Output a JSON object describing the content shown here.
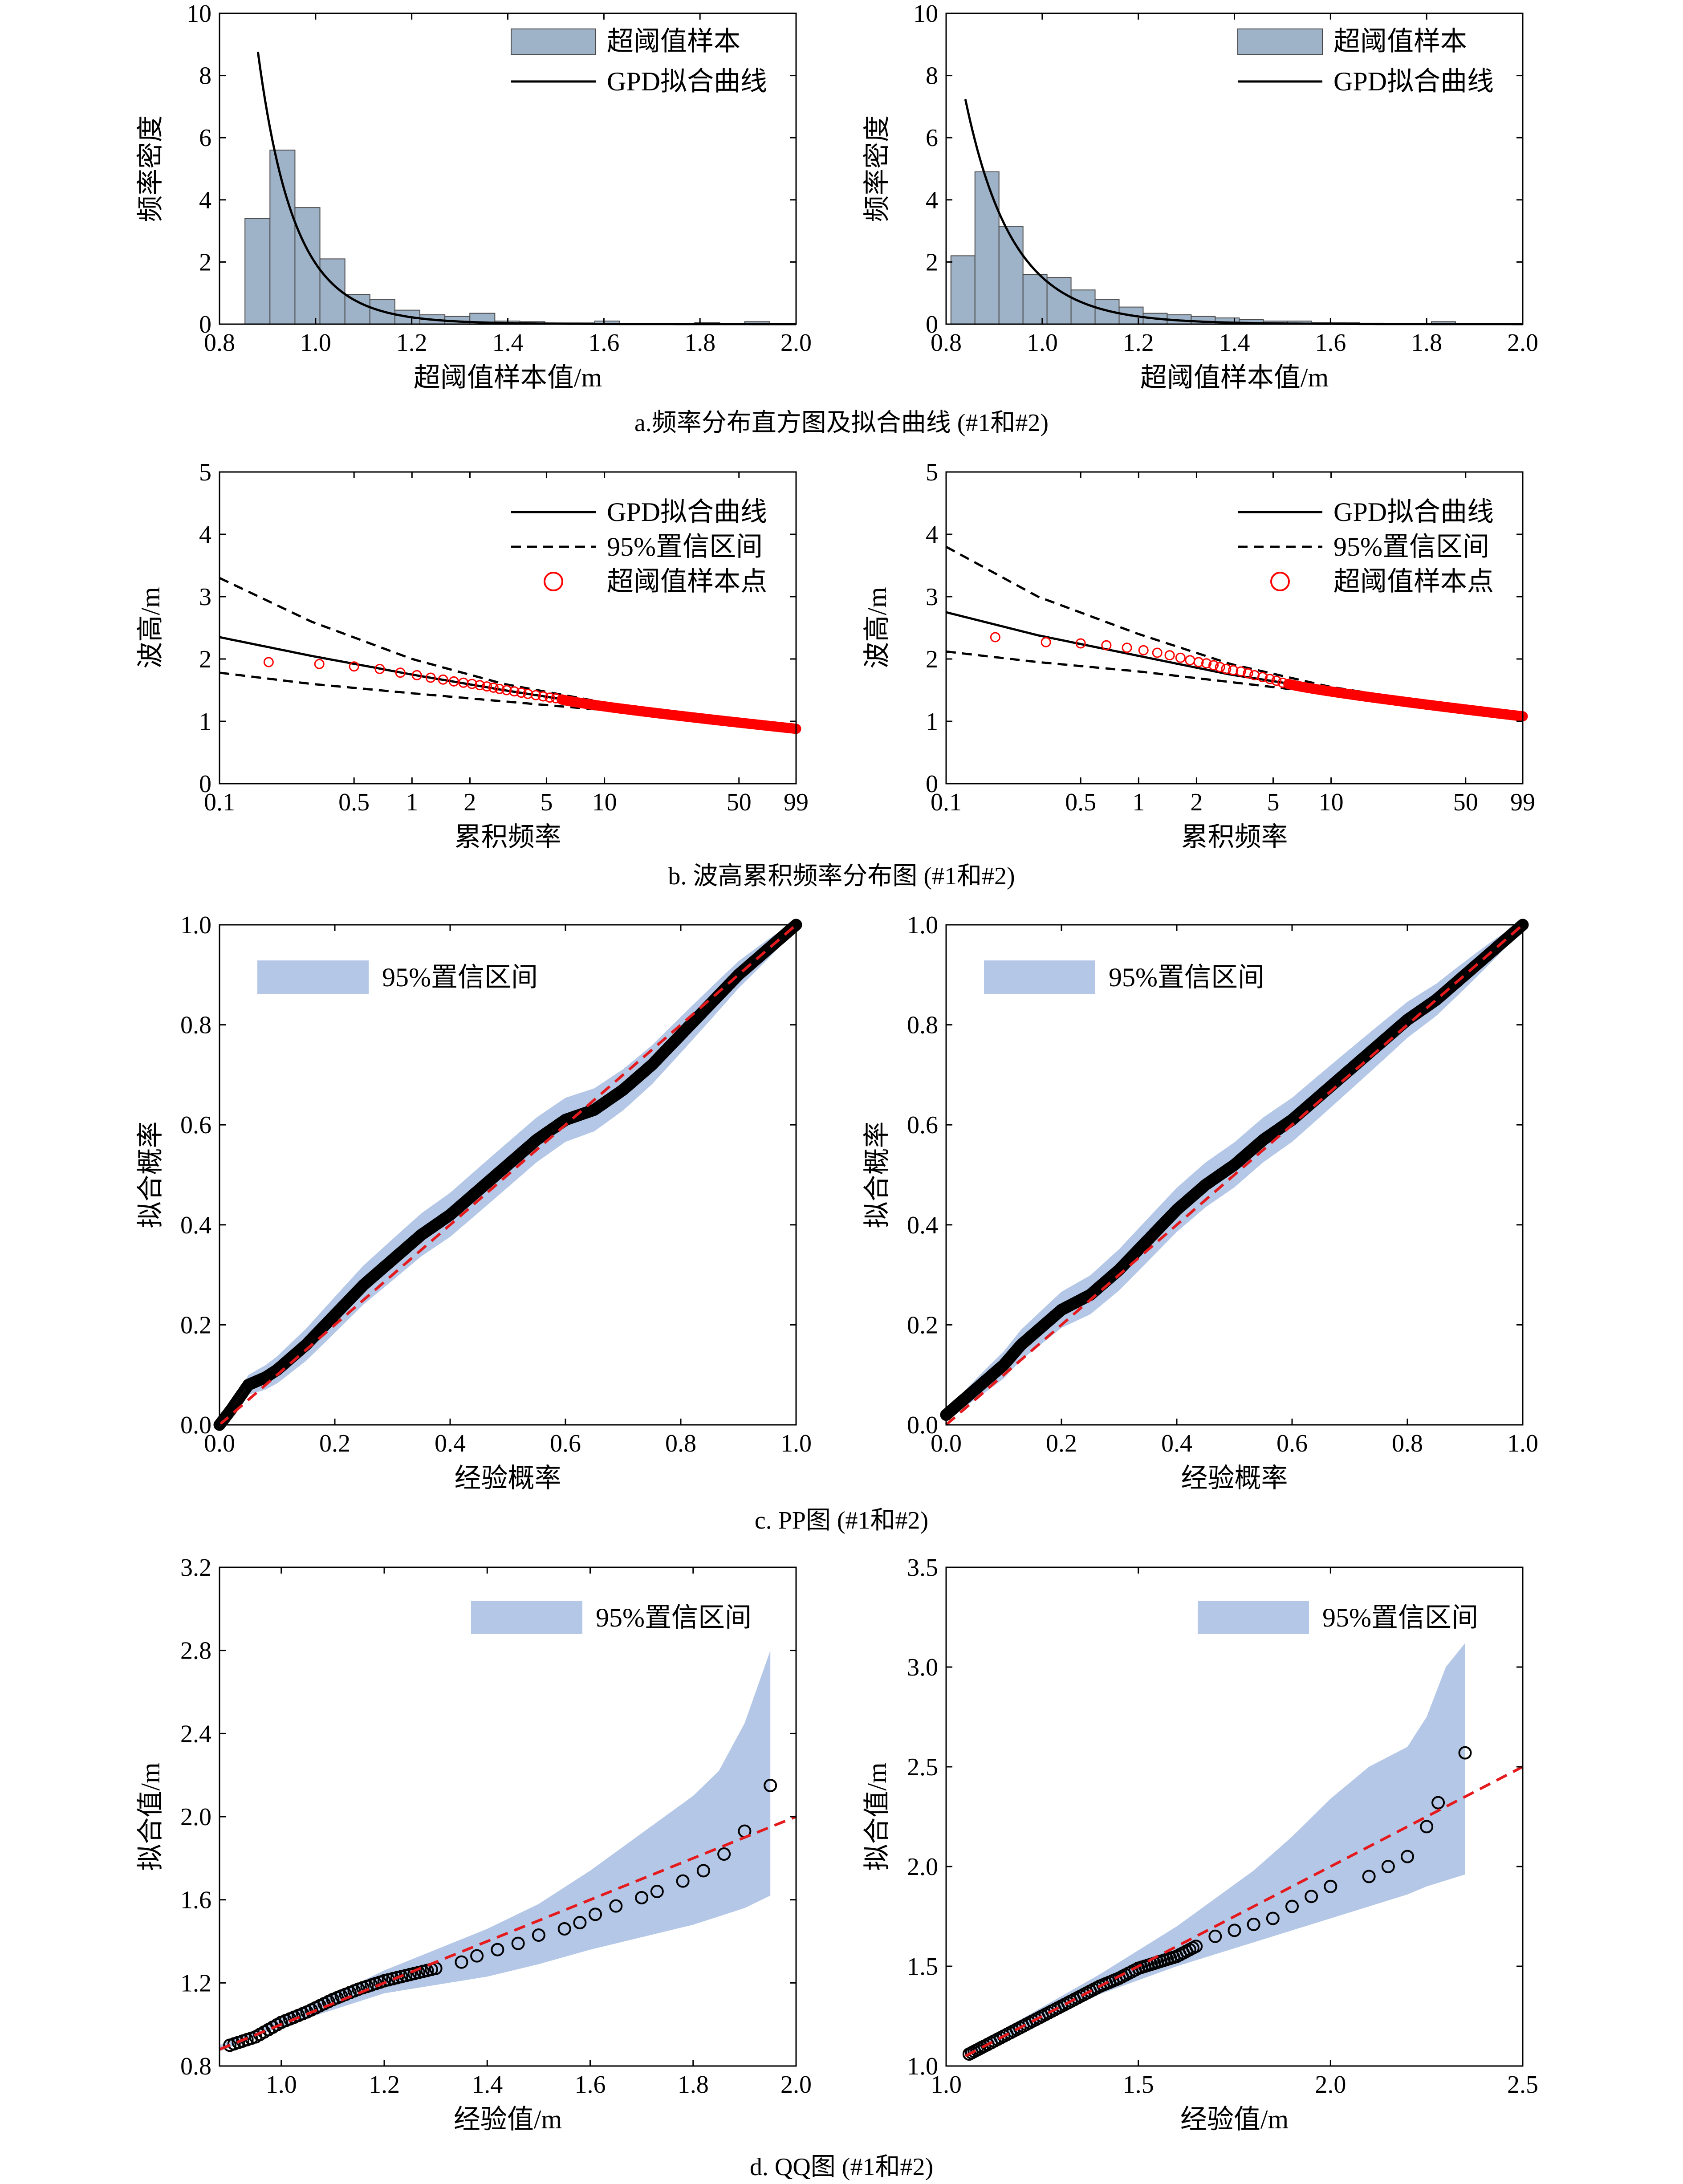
{
  "captions": {
    "a": "a.频率分布直方图及拟合曲线 (#1和#2)",
    "b": "b. 波高累积频率分布图 (#1和#2)",
    "c": "c. PP图 (#1和#2)",
    "d": "d. QQ图 (#1和#2)"
  },
  "colors": {
    "bar_fill": "#9fb3c8",
    "ci_fill": "#b4c7e7",
    "sample_red": "#ff0000",
    "reference_red": "#e41a1c",
    "black": "#000000"
  },
  "chart_data": [
    {
      "id": "a1",
      "type": "bar",
      "xlabel": "超阈值样本值/m",
      "ylabel": "频率密度",
      "xlim": [
        0.8,
        2.0
      ],
      "ylim": [
        0,
        10
      ],
      "xticks": [
        "0.8",
        "1.0",
        "1.2",
        "1.4",
        "1.6",
        "1.8",
        "2.0"
      ],
      "yticks": [
        "0",
        "2",
        "4",
        "6",
        "8",
        "10"
      ],
      "legend": [
        "超阈值样本",
        "GPD拟合曲线"
      ],
      "legend_position": "top-right",
      "bin_edges": [
        0.853,
        0.905,
        0.957,
        1.009,
        1.061,
        1.113,
        1.165,
        1.217,
        1.269,
        1.321,
        1.373,
        1.425,
        1.477,
        1.529,
        1.581,
        1.633,
        1.685,
        1.737,
        1.789,
        1.841,
        1.893,
        1.945
      ],
      "values": [
        3.4,
        5.6,
        3.75,
        2.1,
        0.95,
        0.8,
        0.45,
        0.3,
        0.25,
        0.35,
        0.1,
        0.08,
        0.04,
        0.04,
        0.1,
        0.02,
        0.02,
        0.02,
        0.05,
        0.02,
        0.08
      ],
      "gpd_curve": {
        "x_start": 0.88,
        "x_end": 2.0,
        "threshold": 0.853,
        "sigma": 0.0795,
        "xi": 0.08
      }
    },
    {
      "id": "a2",
      "type": "bar",
      "xlabel": "超阈值样本值/m",
      "ylabel": "频率密度",
      "xlim": [
        0.8,
        2.0
      ],
      "ylim": [
        0,
        10
      ],
      "xticks": [
        "0.8",
        "1.0",
        "1.2",
        "1.4",
        "1.6",
        "1.8",
        "2.0"
      ],
      "yticks": [
        "0",
        "2",
        "4",
        "6",
        "8",
        "10"
      ],
      "legend": [
        "超阈值样本",
        "GPD拟合曲线"
      ],
      "legend_position": "top-right",
      "bin_edges": [
        0.81,
        0.86,
        0.91,
        0.96,
        1.01,
        1.06,
        1.11,
        1.16,
        1.21,
        1.26,
        1.31,
        1.36,
        1.41,
        1.46,
        1.51,
        1.56,
        1.61,
        1.66,
        1.71,
        1.76,
        1.81,
        1.86
      ],
      "values": [
        2.2,
        4.9,
        3.15,
        1.6,
        1.5,
        1.1,
        0.8,
        0.55,
        0.35,
        0.3,
        0.25,
        0.2,
        0.15,
        0.1,
        0.1,
        0.05,
        0.05,
        0.03,
        0.02,
        0.02,
        0.08
      ],
      "gpd_curve": {
        "x_start": 0.84,
        "x_end": 2.0,
        "threshold": 0.81,
        "sigma": 0.1016,
        "xi": 0.05
      }
    },
    {
      "id": "b1",
      "type": "scatter",
      "x_scale": "log",
      "xlabel": "累积频率",
      "ylabel": "波高/m",
      "xlim": [
        0.1,
        99
      ],
      "ylim": [
        0,
        5
      ],
      "xtick_values": [
        0.1,
        0.5,
        1,
        2,
        5,
        10,
        50,
        99
      ],
      "xticks": [
        "0.1",
        "0.5",
        "1",
        "2",
        "5",
        "10",
        "50",
        "99"
      ],
      "yticks": [
        "0",
        "1",
        "2",
        "3",
        "4",
        "5"
      ],
      "legend": [
        "GPD拟合曲线",
        "95%置信区间",
        "超阈值样本点"
      ],
      "legend_position": "top-right",
      "fit_curve": {
        "x": [
          0.1,
          0.3,
          1,
          3,
          10,
          30,
          99
        ],
        "y": [
          2.35,
          2.05,
          1.75,
          1.5,
          1.25,
          1.07,
          0.88
        ]
      },
      "ci_upper": {
        "x": [
          0.1,
          0.3,
          1,
          3,
          10,
          30,
          99
        ],
        "y": [
          3.3,
          2.6,
          2.0,
          1.6,
          1.3,
          1.1,
          0.9
        ]
      },
      "ci_lower": {
        "x": [
          0.1,
          0.3,
          1,
          3,
          10,
          30,
          99
        ],
        "y": [
          1.78,
          1.6,
          1.45,
          1.32,
          1.18,
          1.04,
          0.88
        ]
      },
      "sample_x": [
        0.18,
        0.33,
        0.5,
        0.68,
        0.87,
        1.06,
        1.25,
        1.45,
        1.65,
        1.85,
        2.05,
        2.25,
        2.45,
        2.65,
        2.85,
        3.1,
        3.4,
        3.7,
        4.0,
        4.4,
        4.8,
        5.2,
        5.6,
        6.0
      ],
      "sample_y": [
        1.95,
        1.92,
        1.88,
        1.84,
        1.78,
        1.74,
        1.7,
        1.67,
        1.64,
        1.62,
        1.6,
        1.58,
        1.56,
        1.54,
        1.52,
        1.5,
        1.48,
        1.46,
        1.44,
        1.42,
        1.4,
        1.38,
        1.37,
        1.35
      ],
      "sample_tail": {
        "x_start": 6,
        "x_end": 99,
        "y_start": 1.35,
        "y_end": 0.88
      }
    },
    {
      "id": "b2",
      "type": "scatter",
      "x_scale": "log",
      "xlabel": "累积频率",
      "ylabel": "波高/m",
      "xlim": [
        0.1,
        99
      ],
      "ylim": [
        0,
        5
      ],
      "xtick_values": [
        0.1,
        0.5,
        1,
        2,
        5,
        10,
        50,
        99
      ],
      "xticks": [
        "0.1",
        "0.5",
        "1",
        "2",
        "5",
        "10",
        "50",
        "99"
      ],
      "yticks": [
        "0",
        "1",
        "2",
        "3",
        "4",
        "5"
      ],
      "legend": [
        "GPD拟合曲线",
        "95%置信区间",
        "超阈值样本点"
      ],
      "legend_position": "top-right",
      "fit_curve": {
        "x": [
          0.1,
          0.3,
          1,
          3,
          10,
          30,
          99
        ],
        "y": [
          2.75,
          2.38,
          2.05,
          1.75,
          1.5,
          1.3,
          1.08
        ]
      },
      "ci_upper": {
        "x": [
          0.1,
          0.3,
          1,
          3,
          10,
          30,
          99
        ],
        "y": [
          3.8,
          3.0,
          2.4,
          1.92,
          1.55,
          1.32,
          1.1
        ]
      },
      "ci_lower": {
        "x": [
          0.1,
          0.3,
          1,
          3,
          10,
          30,
          99
        ],
        "y": [
          2.12,
          1.95,
          1.8,
          1.63,
          1.44,
          1.27,
          1.07
        ]
      },
      "sample_x": [
        0.18,
        0.33,
        0.5,
        0.68,
        0.87,
        1.06,
        1.25,
        1.45,
        1.65,
        1.85,
        2.05,
        2.25,
        2.45,
        2.65,
        2.85,
        3.1,
        3.4,
        3.7,
        4.0,
        4.4,
        4.8,
        5.2,
        5.6,
        6.0
      ],
      "sample_y": [
        2.35,
        2.27,
        2.25,
        2.22,
        2.18,
        2.14,
        2.1,
        2.06,
        2.02,
        1.98,
        1.95,
        1.93,
        1.9,
        1.87,
        1.84,
        1.82,
        1.8,
        1.77,
        1.74,
        1.71,
        1.68,
        1.65,
        1.62,
        1.6
      ],
      "sample_tail": {
        "x_start": 6,
        "x_end": 99,
        "y_start": 1.6,
        "y_end": 1.08
      }
    },
    {
      "id": "c1",
      "type": "scatter",
      "xlabel": "经验概率",
      "ylabel": "拟合概率",
      "xlim": [
        0,
        1
      ],
      "ylim": [
        0,
        1
      ],
      "xticks": [
        "0.0",
        "0.2",
        "0.4",
        "0.6",
        "0.8",
        "1.0"
      ],
      "yticks": [
        "0.0",
        "0.2",
        "0.4",
        "0.6",
        "0.8",
        "1.0"
      ],
      "legend": [
        "95%置信区间"
      ],
      "legend_position": "top-left",
      "ci_halfwidth_max": 0.045,
      "points_x": [
        0,
        0.02,
        0.05,
        0.08,
        0.1,
        0.15,
        0.2,
        0.25,
        0.3,
        0.35,
        0.4,
        0.45,
        0.5,
        0.55,
        0.6,
        0.65,
        0.7,
        0.75,
        0.8,
        0.85,
        0.9,
        0.95,
        1.0
      ],
      "points_y": [
        0,
        0.03,
        0.08,
        0.095,
        0.11,
        0.16,
        0.22,
        0.28,
        0.33,
        0.38,
        0.42,
        0.47,
        0.52,
        0.57,
        0.61,
        0.63,
        0.67,
        0.72,
        0.78,
        0.84,
        0.9,
        0.95,
        1.0
      ]
    },
    {
      "id": "c2",
      "type": "scatter",
      "xlabel": "经验概率",
      "ylabel": "拟合概率",
      "xlim": [
        0,
        1
      ],
      "ylim": [
        0,
        1
      ],
      "xticks": [
        "0.0",
        "0.2",
        "0.4",
        "0.6",
        "0.8",
        "1.0"
      ],
      "yticks": [
        "0.0",
        "0.2",
        "0.4",
        "0.6",
        "0.8",
        "1.0"
      ],
      "legend": [
        "95%置信区间"
      ],
      "legend_position": "top-left",
      "ci_halfwidth_max": 0.045,
      "points_x": [
        0,
        0.03,
        0.06,
        0.1,
        0.13,
        0.16,
        0.2,
        0.25,
        0.3,
        0.35,
        0.4,
        0.45,
        0.5,
        0.55,
        0.6,
        0.65,
        0.7,
        0.75,
        0.8,
        0.85,
        0.9,
        0.95,
        1.0
      ],
      "points_y": [
        0.02,
        0.05,
        0.08,
        0.12,
        0.16,
        0.19,
        0.23,
        0.26,
        0.31,
        0.37,
        0.43,
        0.48,
        0.52,
        0.57,
        0.61,
        0.66,
        0.71,
        0.76,
        0.81,
        0.85,
        0.9,
        0.95,
        1.0
      ]
    },
    {
      "id": "d1",
      "type": "scatter",
      "xlabel": "经验值/m",
      "ylabel": "拟合值/m",
      "xlim": [
        0.88,
        2.0
      ],
      "ylim": [
        0.8,
        3.2
      ],
      "xtick_values": [
        1.0,
        1.2,
        1.4,
        1.6,
        1.8,
        2.0
      ],
      "xticks": [
        "1.0",
        "1.2",
        "1.4",
        "1.6",
        "1.8",
        "2.0"
      ],
      "ytick_values": [
        0.8,
        1.2,
        1.6,
        2.0,
        2.4,
        2.8,
        3.2
      ],
      "yticks": [
        "0.8",
        "1.2",
        "1.6",
        "2.0",
        "2.4",
        "2.8",
        "3.2"
      ],
      "legend": [
        "95%置信区间"
      ],
      "legend_position": "top-right",
      "reference_line": {
        "x": [
          0.88,
          2.0
        ],
        "y": [
          0.88,
          2.0
        ]
      },
      "ci_upper": {
        "x": [
          0.88,
          1.0,
          1.1,
          1.2,
          1.3,
          1.4,
          1.5,
          1.6,
          1.7,
          1.8,
          1.85,
          1.9,
          1.95
        ],
        "y": [
          0.9,
          1.03,
          1.14,
          1.26,
          1.36,
          1.46,
          1.58,
          1.74,
          1.92,
          2.1,
          2.22,
          2.45,
          2.8
        ]
      },
      "ci_lower": {
        "x": [
          0.88,
          1.0,
          1.1,
          1.2,
          1.3,
          1.4,
          1.5,
          1.6,
          1.7,
          1.8,
          1.85,
          1.9,
          1.95
        ],
        "y": [
          0.87,
          0.99,
          1.07,
          1.15,
          1.19,
          1.23,
          1.29,
          1.36,
          1.42,
          1.48,
          1.52,
          1.56,
          1.62
        ]
      },
      "points": [
        [
          0.9,
          0.9
        ],
        [
          0.95,
          0.94
        ],
        [
          1.0,
          1.01
        ],
        [
          1.05,
          1.06
        ],
        [
          1.1,
          1.12
        ],
        [
          1.15,
          1.17
        ],
        [
          1.2,
          1.21
        ],
        [
          1.25,
          1.24
        ],
        [
          1.3,
          1.27
        ],
        [
          1.35,
          1.3
        ],
        [
          1.38,
          1.33
        ],
        [
          1.42,
          1.36
        ],
        [
          1.46,
          1.39
        ],
        [
          1.5,
          1.43
        ],
        [
          1.55,
          1.46
        ],
        [
          1.58,
          1.49
        ],
        [
          1.61,
          1.53
        ],
        [
          1.65,
          1.57
        ],
        [
          1.7,
          1.61
        ],
        [
          1.73,
          1.64
        ],
        [
          1.78,
          1.69
        ],
        [
          1.82,
          1.74
        ],
        [
          1.86,
          1.82
        ],
        [
          1.9,
          1.93
        ],
        [
          1.95,
          2.15
        ]
      ]
    },
    {
      "id": "d2",
      "type": "scatter",
      "xlabel": "经验值/m",
      "ylabel": "拟合值/m",
      "xlim": [
        1.0,
        2.5
      ],
      "ylim": [
        1.0,
        3.5
      ],
      "xtick_values": [
        1.0,
        1.5,
        2.0,
        2.5
      ],
      "xticks": [
        "1.0",
        "1.5",
        "2.0",
        "2.5"
      ],
      "ytick_values": [
        1.0,
        1.5,
        2.0,
        2.5,
        3.0,
        3.5
      ],
      "yticks": [
        "1.0",
        "1.5",
        "2.0",
        "2.5",
        "3.0",
        "3.5"
      ],
      "legend": [
        "95%置信区间"
      ],
      "legend_position": "top-right",
      "reference_line": {
        "x": [
          1.05,
          2.5
        ],
        "y": [
          1.05,
          2.5
        ]
      },
      "ci_upper": {
        "x": [
          1.05,
          1.2,
          1.4,
          1.6,
          1.8,
          1.9,
          2.0,
          2.1,
          2.2,
          2.25,
          2.3,
          2.35
        ],
        "y": [
          1.08,
          1.24,
          1.46,
          1.7,
          1.98,
          2.15,
          2.34,
          2.5,
          2.6,
          2.75,
          3.0,
          3.12
        ]
      },
      "ci_lower": {
        "x": [
          1.05,
          1.2,
          1.4,
          1.6,
          1.8,
          1.9,
          2.0,
          2.1,
          2.2,
          2.25,
          2.3,
          2.35
        ],
        "y": [
          1.05,
          1.18,
          1.36,
          1.5,
          1.62,
          1.68,
          1.74,
          1.8,
          1.86,
          1.9,
          1.93,
          1.96
        ]
      },
      "points": [
        [
          1.06,
          1.06
        ],
        [
          1.1,
          1.1
        ],
        [
          1.15,
          1.15
        ],
        [
          1.2,
          1.2
        ],
        [
          1.25,
          1.25
        ],
        [
          1.3,
          1.3
        ],
        [
          1.35,
          1.35
        ],
        [
          1.4,
          1.4
        ],
        [
          1.45,
          1.44
        ],
        [
          1.5,
          1.49
        ],
        [
          1.55,
          1.52
        ],
        [
          1.6,
          1.55
        ],
        [
          1.65,
          1.6
        ],
        [
          1.7,
          1.65
        ],
        [
          1.75,
          1.68
        ],
        [
          1.8,
          1.71
        ],
        [
          1.85,
          1.74
        ],
        [
          1.9,
          1.8
        ],
        [
          1.95,
          1.85
        ],
        [
          2.0,
          1.9
        ],
        [
          2.1,
          1.95
        ],
        [
          2.15,
          2.0
        ],
        [
          2.2,
          2.05
        ],
        [
          2.25,
          2.2
        ],
        [
          2.28,
          2.32
        ],
        [
          2.35,
          2.57
        ]
      ]
    }
  ]
}
